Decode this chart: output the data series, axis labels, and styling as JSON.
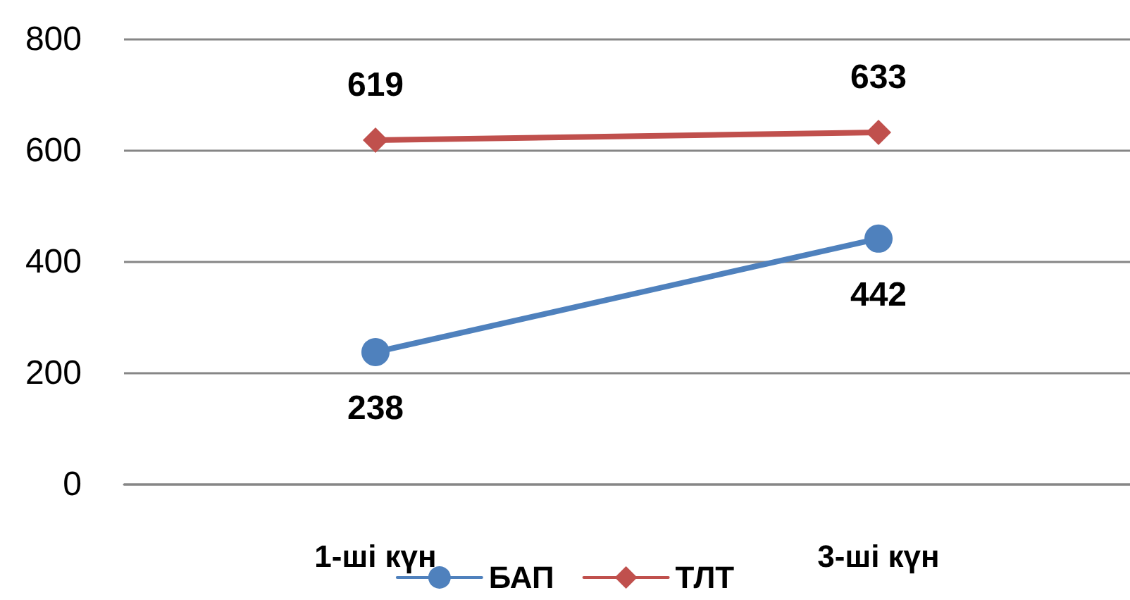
{
  "chart_data": {
    "type": "line",
    "categories": [
      "1-ші күн",
      "3-ші күн"
    ],
    "series": [
      {
        "name": "БАП",
        "color": "#4f81bd",
        "values": [
          238,
          442
        ],
        "marker": "circle"
      },
      {
        "name": "ТЛТ",
        "color": "#c0504d",
        "values": [
          619,
          633
        ],
        "marker": "diamond"
      }
    ],
    "ylim": [
      0,
      800
    ],
    "yticks": [
      0,
      200,
      400,
      600,
      800
    ],
    "grid": "y",
    "legend": "bottom",
    "data_labels": true,
    "line_style": "solid"
  }
}
